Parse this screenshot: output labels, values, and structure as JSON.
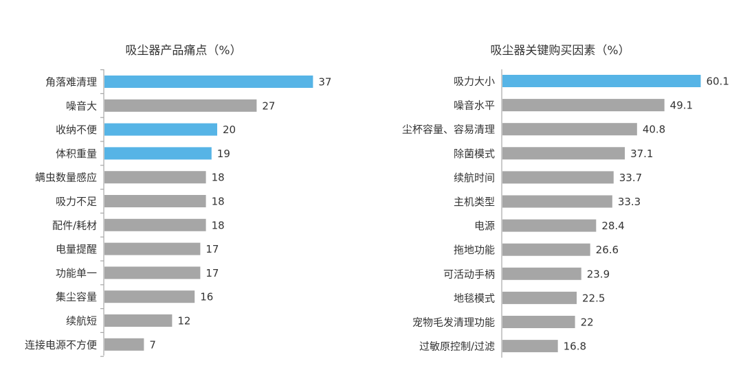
{
  "colors": {
    "highlight": "#56B4E6",
    "normal": "#A6A6A6",
    "axis": "#A6A6A6",
    "text": "#333333"
  },
  "chart_data": [
    {
      "type": "bar",
      "orientation": "horizontal",
      "title": "吸尘器产品痛点（%）",
      "categories": [
        "角落难清理",
        "噪音大",
        "收纳不便",
        "体积重量",
        "螨虫数量感应",
        "吸力不足",
        "配件/耗材",
        "电量提醒",
        "功能单一",
        "集尘容量",
        "续航短",
        "连接电源不方便"
      ],
      "values": [
        37,
        27,
        20,
        19,
        18,
        18,
        18,
        17,
        17,
        16,
        12,
        7
      ],
      "highlighted": [
        0,
        2,
        3
      ],
      "xlim": [
        0,
        40
      ]
    },
    {
      "type": "bar",
      "orientation": "horizontal",
      "title": "吸尘器关键购买因素（%）",
      "categories": [
        "吸力大小",
        "噪音水平",
        "尘杯容量、容易清理",
        "除菌模式",
        "续航时间",
        "主机类型",
        "电源",
        "拖地功能",
        "可活动手柄",
        "地毯模式",
        "宠物毛发清理功能",
        "过敏原控制/过滤"
      ],
      "values": [
        60.1,
        49.1,
        40.8,
        37.1,
        33.7,
        33.3,
        28.4,
        26.6,
        23.9,
        22.5,
        22,
        16.8
      ],
      "highlighted": [
        0
      ],
      "xlim": [
        0,
        63
      ]
    }
  ]
}
